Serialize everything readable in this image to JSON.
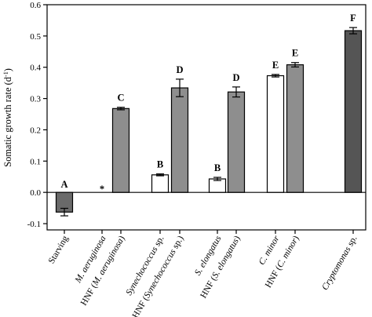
{
  "chart_data": {
    "type": "bar",
    "title": "",
    "xlabel": "",
    "ylabel": "Somatic growth rate (d",
    "ylabel_sup": "-1",
    "ylabel_suffix": ")",
    "ylim": [
      -0.12,
      0.6
    ],
    "yticks": [
      -0.1,
      0.0,
      0.1,
      0.2,
      0.3,
      0.4,
      0.5,
      0.6
    ],
    "ytick_labels": [
      "-0.1",
      "0.0",
      "0.1",
      "0.2",
      "0.3",
      "0.4",
      "0.5",
      "0.6"
    ],
    "grid": false,
    "legend": "none",
    "categories": [
      "Starving",
      "M. aeruginosa",
      "HNF (M. aeruginosa)",
      "Synechococcus sp.",
      "HNF (Synechococcus sp.)",
      "S. elongatus",
      "HNF (S. elongatus)",
      "C. minor",
      "HNF (C. minor)",
      "Cryptomonas sp."
    ],
    "values": [
      -0.063,
      null,
      0.268,
      0.056,
      0.334,
      0.043,
      0.321,
      0.373,
      0.408,
      0.517
    ],
    "errors": [
      0.012,
      null,
      0.004,
      0.003,
      0.028,
      0.005,
      0.016,
      0.004,
      0.007,
      0.01
    ],
    "fills": [
      "#6a6a6a",
      null,
      "#8e8e8e",
      "#ffffff",
      "#8e8e8e",
      "#ffffff",
      "#8e8e8e",
      "#ffffff",
      "#8e8e8e",
      "#555555"
    ],
    "significance": [
      "A",
      "*",
      "C",
      "B",
      "D",
      "B",
      "D",
      "E",
      "E",
      "F"
    ]
  }
}
